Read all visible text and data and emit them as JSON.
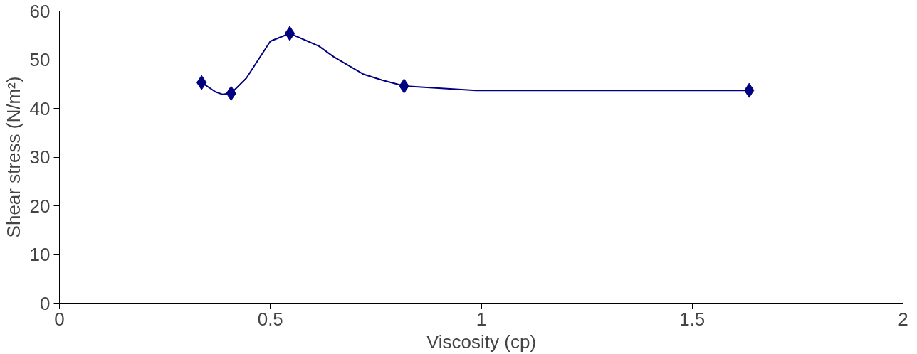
{
  "chart_data": {
    "type": "line",
    "xlabel": "Viscosity (cp)",
    "ylabel": "Shear stress (N/m²)",
    "x": [
      0.337,
      0.407,
      0.546,
      0.817,
      1.635
    ],
    "series": [
      {
        "color": "#000080",
        "marker": "none",
        "x": [
          0.337,
          0.37,
          0.386,
          0.407,
          0.443,
          0.5,
          0.546,
          0.615,
          0.65,
          0.721,
          0.765,
          0.817,
          0.987,
          1.635
        ],
        "values": [
          45.3,
          43.4,
          42.9,
          43.1,
          46.2,
          53.8,
          55.4,
          52.8,
          50.6,
          47.0,
          45.8,
          44.6,
          43.7,
          43.7
        ]
      },
      {
        "type": "scatter",
        "color": "#000080",
        "values": [
          45.3,
          43.1,
          55.4,
          44.6,
          43.7
        ]
      }
    ],
    "xlim": [
      0,
      2
    ],
    "xticks": [
      0,
      0.5,
      1,
      1.5,
      2
    ],
    "ylim": [
      0,
      60
    ],
    "yticks": [
      0,
      10,
      20,
      30,
      40,
      50,
      60
    ],
    "grid": false,
    "marker": "diamond",
    "line_style": "solid"
  }
}
